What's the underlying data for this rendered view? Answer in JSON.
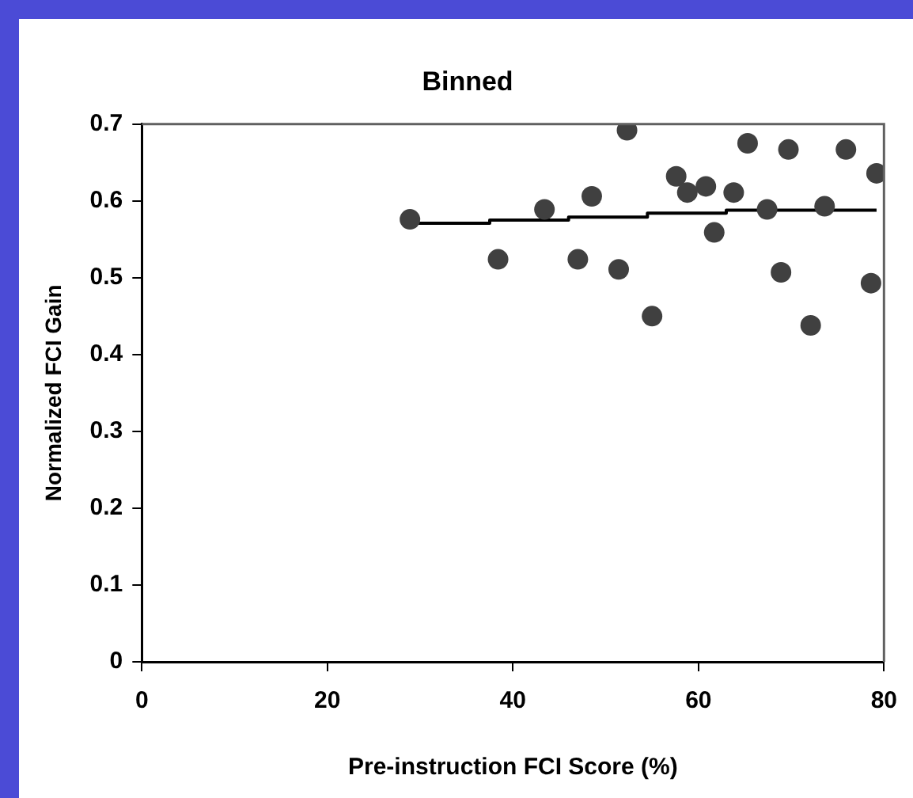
{
  "chart_data": {
    "type": "scatter",
    "title": "Binned",
    "xlabel": "Pre-instruction FCI Score (%)",
    "ylabel": "Normalized FCI Gain",
    "xlim": [
      0,
      80
    ],
    "xticks": [
      0,
      20,
      40,
      60,
      80
    ],
    "ylim": [
      0,
      0.7
    ],
    "yticks": [
      0,
      0.1,
      0.2,
      0.3,
      0.4,
      0.5,
      0.6,
      0.7
    ],
    "grid": false,
    "legend": false,
    "series": [
      {
        "marker": "circle",
        "color": "#404040",
        "x": [
          28.9,
          38.4,
          43.4,
          47.0,
          48.5,
          51.4,
          52.3,
          55.0,
          57.6,
          58.8,
          60.8,
          61.7,
          63.8,
          65.3,
          67.4,
          68.9,
          69.7,
          72.1,
          73.6,
          75.9,
          78.6,
          79.2
        ],
        "values": [
          0.576,
          0.524,
          0.589,
          0.524,
          0.606,
          0.511,
          0.692,
          0.45,
          0.632,
          0.611,
          0.619,
          0.559,
          0.611,
          0.675,
          0.589,
          0.507,
          0.667,
          0.438,
          0.593,
          0.667,
          0.493,
          0.636
        ]
      },
      {
        "type": "step",
        "color": "#000000",
        "x": [
          29,
          37.5,
          46,
          54.5,
          63,
          71.5,
          79.2
        ],
        "values": [
          0.567,
          0.571,
          0.575,
          0.579,
          0.584,
          0.588,
          0.588
        ]
      }
    ]
  }
}
